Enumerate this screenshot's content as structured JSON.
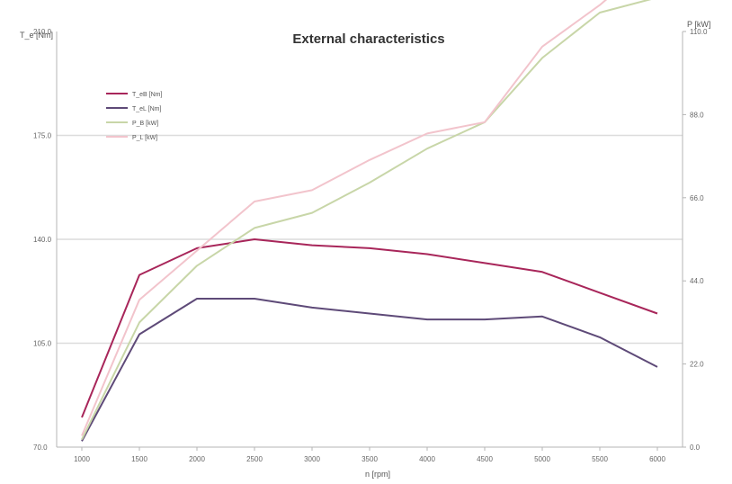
{
  "chart_data": {
    "type": "line",
    "title": "External characteristics",
    "ylabel_left": "T_e [Nm]",
    "ylabel_right": "P [kW]",
    "xlabel": "n [rpm]",
    "x": [
      1000,
      1500,
      2000,
      2500,
      3000,
      3500,
      4000,
      4500,
      5000,
      5500,
      6000
    ],
    "x_ticks": [
      "1000",
      "1500",
      "2000",
      "2500",
      "3000",
      "3500",
      "4000",
      "4500",
      "5000",
      "5500",
      "6000"
    ],
    "y_left_ticks": [
      "70.0",
      "105.0",
      "140.0",
      "175.0",
      "210.0"
    ],
    "y_right_ticks": [
      "0.0",
      "22.0",
      "44.0",
      "66.0",
      "88.0",
      "110.0"
    ],
    "ylim_left": [
      70,
      210
    ],
    "ylim_right": [
      0,
      110
    ],
    "grid": "horizontal",
    "legend_position": "top-left",
    "series": [
      {
        "name": "T_eB [Nm]",
        "axis": "left",
        "color": "#a8265a",
        "values": [
          80,
          128,
          137,
          140,
          138,
          137,
          135,
          132,
          129,
          122,
          115
        ]
      },
      {
        "name": "T_eL [Nm]",
        "axis": "left",
        "color": "#5e4a78",
        "values": [
          72,
          108,
          120,
          120,
          117,
          115,
          113,
          113,
          114,
          107,
          97
        ]
      },
      {
        "name": "P_B [kW]",
        "axis": "right",
        "color": "#c8d6a8",
        "values": [
          2,
          33,
          48,
          58,
          62,
          70,
          79,
          86,
          103,
          115,
          119
        ]
      },
      {
        "name": "P_L [kW]",
        "axis": "right",
        "color": "#f2c4cc",
        "values": [
          3,
          39,
          52,
          65,
          68,
          76,
          83,
          86,
          106,
          117,
          130
        ]
      }
    ]
  }
}
